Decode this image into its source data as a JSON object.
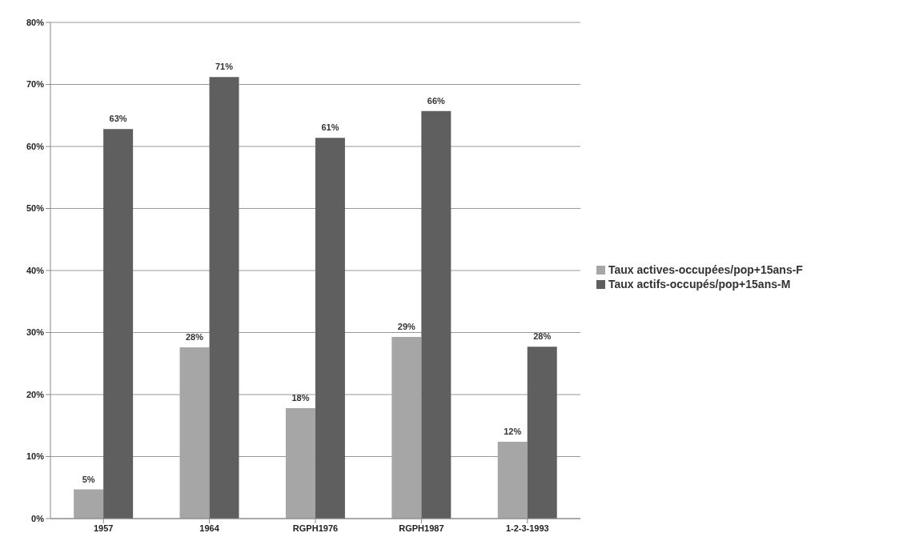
{
  "chart_data": {
    "type": "bar",
    "categories": [
      "1957",
      "1964",
      "RGPH1976",
      "RGPH1987",
      "1-2-3-1993"
    ],
    "series": [
      {
        "name": "Taux actives-occupées/pop+15ans-F",
        "color": "#a6a6a6",
        "values": [
          4.7,
          27.6,
          17.8,
          29.3,
          12.4
        ],
        "value_labels": [
          "5%",
          "28%",
          "18%",
          "29%",
          "12%"
        ]
      },
      {
        "name": "Taux actifs-occupés/pop+15ans-M",
        "color": "#5f5f5f",
        "values": [
          62.8,
          71.2,
          61.4,
          65.7,
          27.7
        ],
        "value_labels": [
          "63%",
          "71%",
          "61%",
          "66%",
          "28%"
        ]
      }
    ],
    "ylim": [
      0,
      80
    ],
    "yticks": [
      {
        "value": 0,
        "label": "0%"
      },
      {
        "value": 10,
        "label": "10%"
      },
      {
        "value": 20,
        "label": "20%"
      },
      {
        "value": 30,
        "label": "30%"
      },
      {
        "value": 40,
        "label": "40%"
      },
      {
        "value": 50,
        "label": "50%"
      },
      {
        "value": 60,
        "label": "60%"
      },
      {
        "value": 70,
        "label": "70%"
      },
      {
        "value": 80,
        "label": "80%"
      }
    ],
    "grid": "y",
    "legend": "right"
  }
}
